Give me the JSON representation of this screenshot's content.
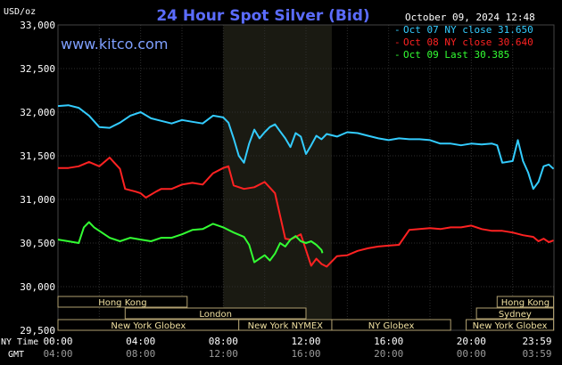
{
  "header": {
    "title": "24 Hour Spot Silver (Bid)",
    "unit": "USD/oz",
    "timestamp": "October 09, 2024 12:48",
    "watermark": "www.kitco.com"
  },
  "legend": [
    {
      "label": "Oct 07 NY close 31.650",
      "color": "#33ccff"
    },
    {
      "label": "Oct 08 NY close 30.640",
      "color": "#ff2222"
    },
    {
      "label": "Oct 09 Last 30.385",
      "color": "#33ff33"
    }
  ],
  "axis": {
    "y_ticks": [
      "33,000",
      "32,500",
      "32,000",
      "31,500",
      "31,000",
      "30,500",
      "30,000",
      "29,500"
    ],
    "x_primary_label": "NY Time",
    "x_secondary_label": "GMT",
    "x_ticks_ny": [
      "00:00",
      "04:00",
      "08:00",
      "12:00",
      "16:00",
      "20:00",
      "23:59"
    ],
    "x_ticks_gmt": [
      "04:00",
      "08:00",
      "12:00",
      "16:00",
      "20:00",
      "00:00",
      "03:59"
    ]
  },
  "sessions": [
    {
      "label": "Hong Kong",
      "row": 0,
      "start": 0.0,
      "end": 6.25
    },
    {
      "label": "London",
      "row": 1,
      "start": 3.25,
      "end": 12.0
    },
    {
      "label": "New York Globex",
      "row": 2,
      "start": 0.0,
      "end": 8.75
    },
    {
      "label": "New York NYMEX",
      "row": 2,
      "start": 8.75,
      "end": 13.25
    },
    {
      "label": "NY Globex",
      "row": 2,
      "start": 13.25,
      "end": 19.0
    },
    {
      "label": "Hong Kong",
      "row": 0,
      "start": 21.25,
      "end": 23.98
    },
    {
      "label": "Sydney",
      "row": 1,
      "start": 20.25,
      "end": 23.98
    },
    {
      "label": "New York Globex",
      "row": 2,
      "start": 19.75,
      "end": 23.98
    }
  ],
  "chart_data": {
    "type": "line",
    "title": "24 Hour Spot Silver (Bid)",
    "ylabel": "USD/oz",
    "xlabel": "NY Time",
    "x_unit": "hours (NY time)",
    "xlim": [
      0,
      24
    ],
    "ylim": [
      29500,
      33000
    ],
    "grid": true,
    "legend_position": "top-right",
    "shaded_region": {
      "start": 8.0,
      "end": 13.25
    },
    "series": [
      {
        "name": "Oct 07 NY close 31.650",
        "color": "#33ccff",
        "points": [
          [
            0,
            32070
          ],
          [
            0.5,
            32080
          ],
          [
            1.0,
            32050
          ],
          [
            1.5,
            31960
          ],
          [
            2.0,
            31830
          ],
          [
            2.5,
            31820
          ],
          [
            3.0,
            31880
          ],
          [
            3.5,
            31960
          ],
          [
            4.0,
            32000
          ],
          [
            4.5,
            31930
          ],
          [
            5.0,
            31900
          ],
          [
            5.5,
            31870
          ],
          [
            6.0,
            31910
          ],
          [
            6.5,
            31890
          ],
          [
            7.0,
            31870
          ],
          [
            7.5,
            31960
          ],
          [
            8.0,
            31940
          ],
          [
            8.25,
            31880
          ],
          [
            8.5,
            31700
          ],
          [
            8.75,
            31500
          ],
          [
            9.0,
            31420
          ],
          [
            9.25,
            31640
          ],
          [
            9.5,
            31800
          ],
          [
            9.75,
            31700
          ],
          [
            10.0,
            31770
          ],
          [
            10.25,
            31830
          ],
          [
            10.5,
            31860
          ],
          [
            10.75,
            31780
          ],
          [
            11.0,
            31700
          ],
          [
            11.25,
            31600
          ],
          [
            11.5,
            31760
          ],
          [
            11.75,
            31720
          ],
          [
            12.0,
            31520
          ],
          [
            12.25,
            31620
          ],
          [
            12.5,
            31730
          ],
          [
            12.75,
            31690
          ],
          [
            13.0,
            31750
          ],
          [
            13.5,
            31720
          ],
          [
            14.0,
            31770
          ],
          [
            14.5,
            31760
          ],
          [
            15.0,
            31730
          ],
          [
            15.5,
            31700
          ],
          [
            16.0,
            31680
          ],
          [
            16.5,
            31700
          ],
          [
            17.0,
            31690
          ],
          [
            17.5,
            31690
          ],
          [
            18.0,
            31680
          ],
          [
            18.5,
            31640
          ],
          [
            19.0,
            31640
          ],
          [
            19.5,
            31620
          ],
          [
            20.0,
            31640
          ],
          [
            20.5,
            31630
          ],
          [
            21.0,
            31640
          ],
          [
            21.25,
            31620
          ],
          [
            21.5,
            31420
          ],
          [
            22.0,
            31440
          ],
          [
            22.25,
            31680
          ],
          [
            22.5,
            31440
          ],
          [
            22.75,
            31310
          ],
          [
            23.0,
            31120
          ],
          [
            23.25,
            31200
          ],
          [
            23.5,
            31380
          ],
          [
            23.75,
            31400
          ],
          [
            23.98,
            31350
          ]
        ]
      },
      {
        "name": "Oct 08 NY close 30.640",
        "color": "#ff2222",
        "points": [
          [
            0,
            31360
          ],
          [
            0.5,
            31360
          ],
          [
            1.0,
            31380
          ],
          [
            1.5,
            31430
          ],
          [
            2.0,
            31380
          ],
          [
            2.5,
            31480
          ],
          [
            3.0,
            31350
          ],
          [
            3.25,
            31120
          ],
          [
            3.75,
            31090
          ],
          [
            4.0,
            31070
          ],
          [
            4.25,
            31020
          ],
          [
            4.75,
            31090
          ],
          [
            5.0,
            31120
          ],
          [
            5.5,
            31120
          ],
          [
            6.0,
            31170
          ],
          [
            6.5,
            31190
          ],
          [
            7.0,
            31170
          ],
          [
            7.5,
            31300
          ],
          [
            8.0,
            31360
          ],
          [
            8.25,
            31380
          ],
          [
            8.5,
            31160
          ],
          [
            9.0,
            31120
          ],
          [
            9.5,
            31140
          ],
          [
            10.0,
            31200
          ],
          [
            10.5,
            31070
          ],
          [
            11.0,
            30550
          ],
          [
            11.25,
            30540
          ],
          [
            11.5,
            30570
          ],
          [
            11.75,
            30600
          ],
          [
            12.0,
            30420
          ],
          [
            12.25,
            30240
          ],
          [
            12.5,
            30320
          ],
          [
            12.75,
            30260
          ],
          [
            13.0,
            30230
          ],
          [
            13.5,
            30350
          ],
          [
            14.0,
            30360
          ],
          [
            14.5,
            30410
          ],
          [
            15.0,
            30440
          ],
          [
            15.5,
            30460
          ],
          [
            16.0,
            30470
          ],
          [
            16.5,
            30480
          ],
          [
            17.0,
            30650
          ],
          [
            17.5,
            30660
          ],
          [
            18.0,
            30670
          ],
          [
            18.5,
            30660
          ],
          [
            19.0,
            30680
          ],
          [
            19.5,
            30680
          ],
          [
            20.0,
            30700
          ],
          [
            20.5,
            30660
          ],
          [
            21.0,
            30640
          ],
          [
            21.5,
            30640
          ],
          [
            22.0,
            30620
          ],
          [
            22.5,
            30590
          ],
          [
            23.0,
            30570
          ],
          [
            23.25,
            30520
          ],
          [
            23.5,
            30550
          ],
          [
            23.75,
            30510
          ],
          [
            23.98,
            30530
          ]
        ]
      },
      {
        "name": "Oct 09 Last 30.385",
        "color": "#33ff33",
        "points": [
          [
            0,
            30540
          ],
          [
            0.5,
            30520
          ],
          [
            1.0,
            30500
          ],
          [
            1.25,
            30680
          ],
          [
            1.5,
            30740
          ],
          [
            1.75,
            30680
          ],
          [
            2.0,
            30640
          ],
          [
            2.5,
            30560
          ],
          [
            3.0,
            30520
          ],
          [
            3.5,
            30560
          ],
          [
            4.0,
            30540
          ],
          [
            4.5,
            30520
          ],
          [
            5.0,
            30560
          ],
          [
            5.5,
            30560
          ],
          [
            6.0,
            30600
          ],
          [
            6.5,
            30650
          ],
          [
            7.0,
            30660
          ],
          [
            7.5,
            30720
          ],
          [
            8.0,
            30680
          ],
          [
            8.5,
            30620
          ],
          [
            9.0,
            30570
          ],
          [
            9.25,
            30480
          ],
          [
            9.5,
            30280
          ],
          [
            9.75,
            30320
          ],
          [
            10.0,
            30360
          ],
          [
            10.25,
            30300
          ],
          [
            10.5,
            30380
          ],
          [
            10.75,
            30500
          ],
          [
            11.0,
            30460
          ],
          [
            11.25,
            30540
          ],
          [
            11.5,
            30580
          ],
          [
            11.75,
            30520
          ],
          [
            12.0,
            30500
          ],
          [
            12.25,
            30520
          ],
          [
            12.5,
            30480
          ],
          [
            12.75,
            30420
          ],
          [
            12.8,
            30385
          ]
        ]
      }
    ]
  }
}
